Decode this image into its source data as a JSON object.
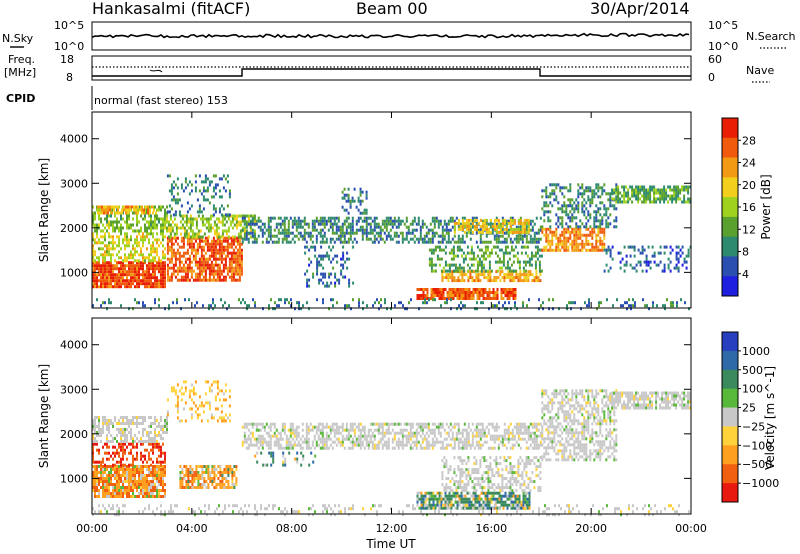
{
  "header": {
    "station": "Hankasalmi (fitACF)",
    "beam": "Beam 00",
    "date": "30/Apr/2014"
  },
  "strip_panels": {
    "nsky": {
      "label": "N.Sky",
      "ticks": [
        "10^5",
        "10^0"
      ]
    },
    "nsearch": {
      "label": "N.Search",
      "ticks": [
        "10^5",
        "10^0"
      ]
    },
    "freq": {
      "label_line1": "Freq.",
      "label_line2": "[MHz]",
      "ticks": [
        "18",
        "8"
      ]
    },
    "nave": {
      "label": "Nave",
      "ticks": [
        "60",
        "0"
      ]
    },
    "cpid": {
      "label": "CPID",
      "text": "normal (fast stereo) 153"
    }
  },
  "colors": {
    "power": [
      "#1f1fe0",
      "#2a4fb0",
      "#2e8a6e",
      "#5aa02f",
      "#9ed21e",
      "#f2cf1c",
      "#f39a14",
      "#f05a0c",
      "#e81f05"
    ],
    "velocity": [
      "#2840c0",
      "#2e6aa8",
      "#3a8a5e",
      "#58b83a",
      "#c8c8c8",
      "#ffd23c",
      "#ffa020",
      "#f06010",
      "#e81a10"
    ]
  },
  "chart_data": [
    {
      "type": "heatmap",
      "title": "",
      "quantity": "Power",
      "ylabel": "Slant Range [km]",
      "xlabel": "Time UT",
      "xlim": [
        "00:00",
        "24:00"
      ],
      "ylim": [
        200,
        4600
      ],
      "x_ticks": [
        "00:00",
        "04:00",
        "08:00",
        "12:00",
        "16:00",
        "20:00",
        "00:00"
      ],
      "y_ticks": [
        1000,
        2000,
        3000,
        4000
      ],
      "colorbar": {
        "label": "Power [dB]",
        "ticks": [
          4,
          8,
          12,
          16,
          20,
          24,
          28
        ],
        "range": [
          0,
          32
        ]
      },
      "echo_regions": [
        {
          "t0": 0.0,
          "t1": 2.9,
          "r0": 700,
          "r1": 1250,
          "value": 28,
          "density": 0.9
        },
        {
          "t0": 0.0,
          "t1": 2.9,
          "r0": 1250,
          "r1": 1900,
          "value": 18,
          "density": 0.55
        },
        {
          "t0": 0.0,
          "t1": 3.0,
          "r0": 1900,
          "r1": 2500,
          "value": 14,
          "density": 0.6
        },
        {
          "t0": 0.2,
          "t1": 2.6,
          "r0": 2300,
          "r1": 2500,
          "value": 22,
          "density": 0.6
        },
        {
          "t0": 3.0,
          "t1": 6.0,
          "r0": 800,
          "r1": 1800,
          "value": 27,
          "density": 0.75
        },
        {
          "t0": 2.8,
          "t1": 6.5,
          "r0": 1800,
          "r1": 2300,
          "value": 16,
          "density": 0.55
        },
        {
          "t0": 3.0,
          "t1": 5.5,
          "r0": 2300,
          "r1": 3200,
          "value": 8,
          "density": 0.3
        },
        {
          "t0": 6.0,
          "t1": 18.0,
          "r0": 1700,
          "r1": 2250,
          "value": 9,
          "density": 0.55
        },
        {
          "t0": 8.5,
          "t1": 10.5,
          "r0": 700,
          "r1": 1600,
          "value": 7,
          "density": 0.25
        },
        {
          "t0": 10.0,
          "t1": 11.0,
          "r0": 2300,
          "r1": 2900,
          "value": 8,
          "density": 0.35
        },
        {
          "t0": 13.0,
          "t1": 17.0,
          "r0": 400,
          "r1": 650,
          "value": 27,
          "density": 0.85
        },
        {
          "t0": 14.0,
          "t1": 18.0,
          "r0": 800,
          "r1": 1050,
          "value": 22,
          "density": 0.7
        },
        {
          "t0": 13.5,
          "t1": 18.0,
          "r0": 1050,
          "r1": 1600,
          "value": 12,
          "density": 0.45
        },
        {
          "t0": 14.5,
          "t1": 17.5,
          "r0": 1900,
          "r1": 2200,
          "value": 20,
          "density": 0.6
        },
        {
          "t0": 18.0,
          "t1": 20.5,
          "r0": 1500,
          "r1": 2000,
          "value": 24,
          "density": 0.7
        },
        {
          "t0": 18.0,
          "t1": 21.0,
          "r0": 2000,
          "r1": 3000,
          "value": 9,
          "density": 0.45
        },
        {
          "t0": 20.8,
          "t1": 24.0,
          "r0": 2600,
          "r1": 2950,
          "value": 12,
          "density": 0.7
        },
        {
          "t0": 20.5,
          "t1": 24.0,
          "r0": 1000,
          "r1": 1600,
          "value": 6,
          "density": 0.25
        },
        {
          "t0": 0.0,
          "t1": 24.0,
          "r0": 200,
          "r1": 420,
          "value": 8,
          "density": 0.2
        }
      ]
    },
    {
      "type": "heatmap",
      "title": "",
      "quantity": "Velocity",
      "ylabel": "Slant Range [km]",
      "xlabel": "Time UT",
      "xlim": [
        "00:00",
        "24:00"
      ],
      "ylim": [
        200,
        4600
      ],
      "x_ticks": [
        "00:00",
        "04:00",
        "08:00",
        "12:00",
        "16:00",
        "20:00",
        "00:00"
      ],
      "y_ticks": [
        1000,
        2000,
        3000,
        4000
      ],
      "colorbar": {
        "label": "Velocity [m s^-1]",
        "ticks": [
          "1000",
          "500",
          "100",
          "25",
          "−25",
          "−100",
          "−500",
          "−1000"
        ]
      },
      "echo_regions": [
        {
          "t0": 0.0,
          "t1": 2.9,
          "r0": 600,
          "r1": 1300,
          "value": -200,
          "density": 0.85
        },
        {
          "t0": 0.0,
          "t1": 2.9,
          "r0": 1300,
          "r1": 1800,
          "value": -700,
          "density": 0.45
        },
        {
          "t0": 0.0,
          "t1": 3.0,
          "r0": 1800,
          "r1": 2400,
          "value": 0,
          "density": 0.55
        },
        {
          "t0": 3.5,
          "t1": 5.8,
          "r0": 800,
          "r1": 1300,
          "value": -150,
          "density": 0.7
        },
        {
          "t0": 6.0,
          "t1": 18.0,
          "r0": 1700,
          "r1": 2250,
          "value": 0,
          "density": 0.6
        },
        {
          "t0": 6.5,
          "t1": 9.0,
          "r0": 1300,
          "r1": 1600,
          "value": 150,
          "density": 0.25
        },
        {
          "t0": 13.0,
          "t1": 17.5,
          "r0": 350,
          "r1": 700,
          "value": 150,
          "density": 0.8
        },
        {
          "t0": 14.0,
          "t1": 18.0,
          "r0": 700,
          "r1": 1500,
          "value": 0,
          "density": 0.45
        },
        {
          "t0": 18.0,
          "t1": 21.0,
          "r0": 1400,
          "r1": 3000,
          "value": 0,
          "density": 0.55
        },
        {
          "t0": 20.8,
          "t1": 24.0,
          "r0": 2600,
          "r1": 2950,
          "value": 0,
          "density": 0.75
        },
        {
          "t0": 3.0,
          "t1": 5.5,
          "r0": 2300,
          "r1": 3200,
          "value": -50,
          "density": 0.25
        },
        {
          "t0": 0.0,
          "t1": 24.0,
          "r0": 200,
          "r1": 420,
          "value": 0,
          "density": 0.2
        }
      ]
    }
  ]
}
